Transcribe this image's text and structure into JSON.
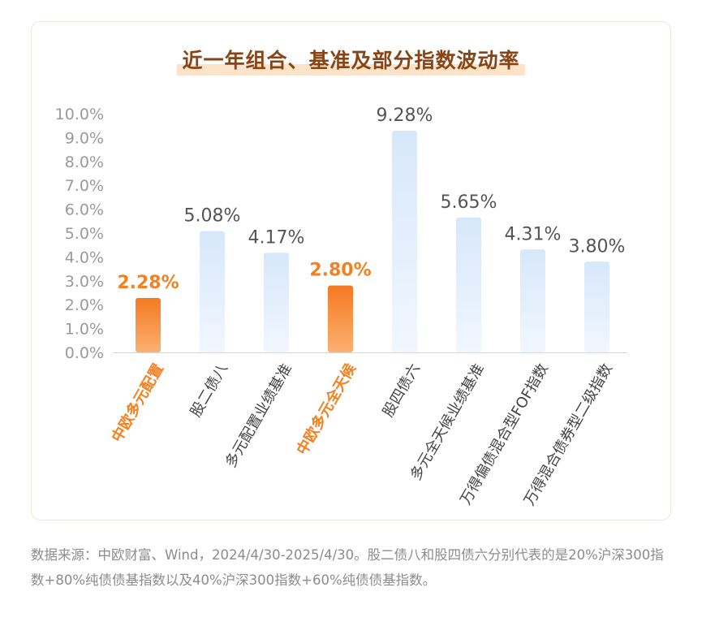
{
  "chart_data": {
    "type": "bar",
    "title": "近一年组合、基准及部分指数波动率",
    "categories": [
      "中欧多元配置",
      "股二债八",
      "多元配置业绩基准",
      "中欧多元全天候",
      "股四债六",
      "多元全天候业绩基准",
      "万得偏债混合型FOF指数",
      "万得混合债券型二级指数"
    ],
    "values": [
      2.28,
      5.08,
      4.17,
      2.8,
      9.28,
      5.65,
      4.31,
      3.8
    ],
    "value_labels": [
      "2.28%",
      "5.08%",
      "4.17%",
      "2.80%",
      "9.28%",
      "5.65%",
      "4.31%",
      "3.80%"
    ],
    "highlight": [
      true,
      false,
      false,
      true,
      false,
      false,
      false,
      false
    ],
    "y_ticks": [
      "0.0%",
      "1.0%",
      "2.0%",
      "3.0%",
      "4.0%",
      "5.0%",
      "6.0%",
      "7.0%",
      "8.0%",
      "9.0%",
      "10.0%"
    ],
    "ylim": [
      0,
      10
    ],
    "grid": false,
    "xlabel": "",
    "ylabel": "",
    "colors": {
      "highlight_top": "#f47a22",
      "highlight_bottom": "#fcb071",
      "normal_top": "#d7e7fb",
      "normal_bottom": "#f1f7fe",
      "highlight_text": "#f5801f",
      "normal_text": "#555555",
      "axis_text": "#9a9a9a"
    }
  },
  "note": "数据来源：中欧财富、Wind，2024/4/30-2025/4/30。股二债八和股四债六分别代表的是20%沪深300指数+80%纯债债基指数以及40%沪深300指数+60%纯债债基指数。"
}
